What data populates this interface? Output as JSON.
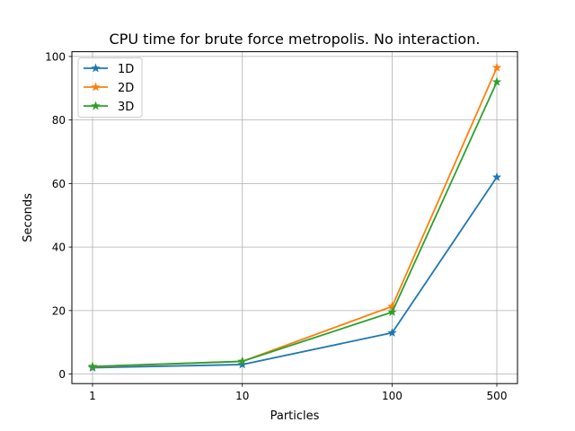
{
  "chart_data": {
    "type": "line",
    "title": "CPU time for brute force metropolis. No interaction.",
    "xlabel": "Particles",
    "ylabel": "Seconds",
    "xscale": "log",
    "x": [
      1,
      10,
      100,
      500
    ],
    "xticks": [
      "1",
      "10",
      "100",
      "500"
    ],
    "yticks": [
      "0",
      "20",
      "40",
      "60",
      "80",
      "100"
    ],
    "ylim": [
      -3,
      101.5
    ],
    "grid": true,
    "legend": "top-left",
    "marker": "star",
    "series": [
      {
        "name": "1D",
        "color": "#1f77b4",
        "values": [
          2.0,
          3.0,
          13.0,
          62.0
        ]
      },
      {
        "name": "2D",
        "color": "#ff7f0e",
        "values": [
          2.3,
          4.0,
          21.3,
          96.5
        ]
      },
      {
        "name": "3D",
        "color": "#2ca02c",
        "values": [
          2.4,
          4.0,
          19.5,
          92.0
        ]
      }
    ]
  }
}
